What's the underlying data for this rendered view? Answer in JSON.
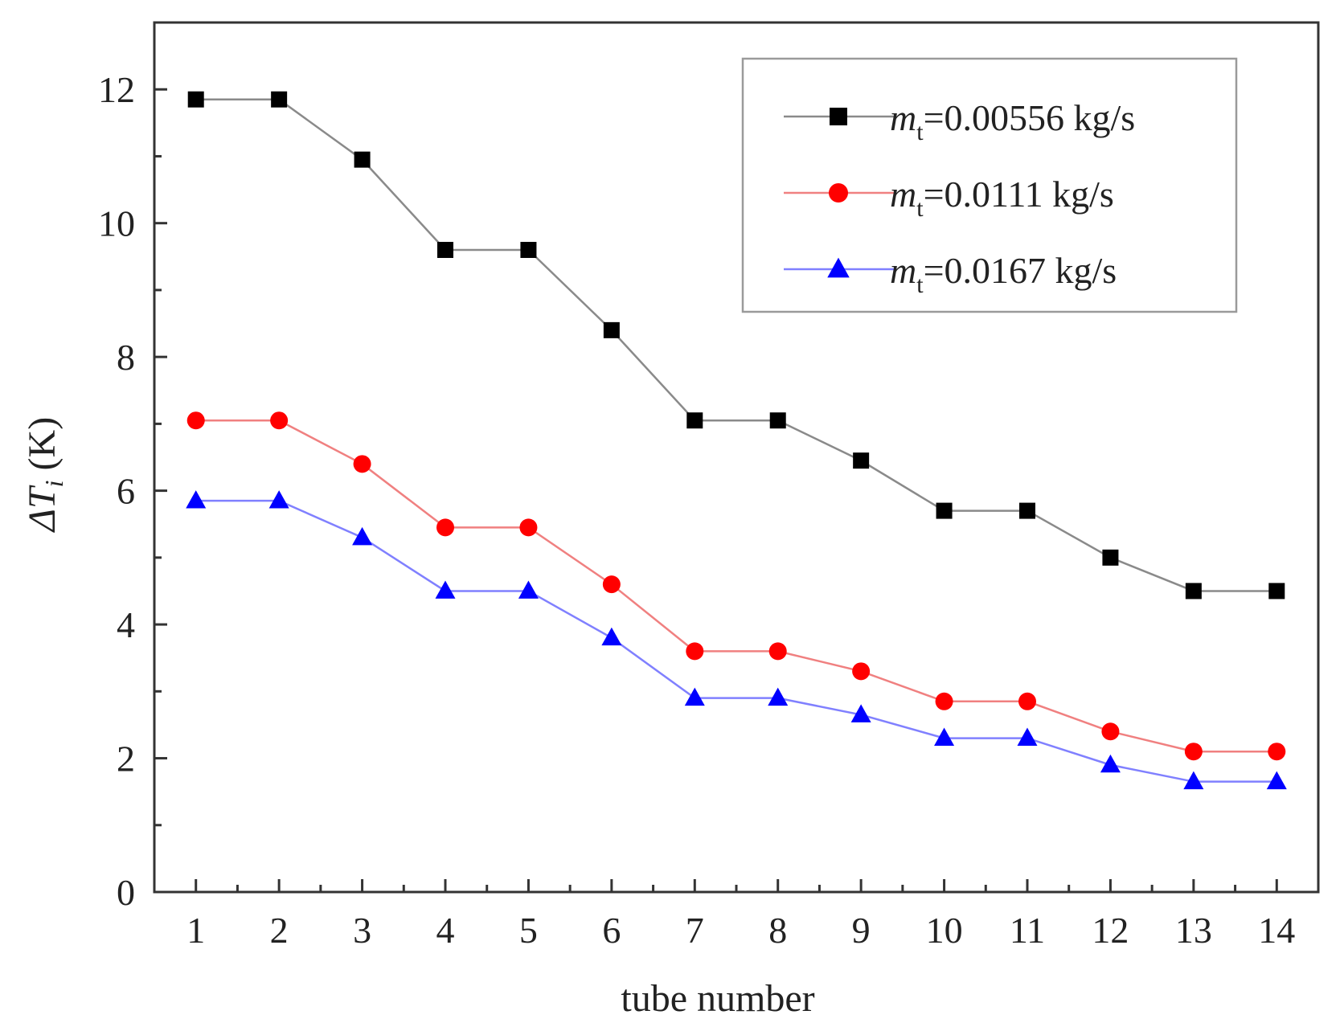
{
  "chart_data": {
    "type": "line",
    "title": "",
    "xlabel": "tube number",
    "ylabel": {
      "symbol": "ΔT",
      "subscript": "i",
      "unit": " (K)"
    },
    "x": [
      1,
      2,
      3,
      4,
      5,
      6,
      7,
      8,
      9,
      10,
      11,
      12,
      13,
      14
    ],
    "xlim": [
      0.5,
      14.5
    ],
    "ylim": [
      0,
      13
    ],
    "yticks": [
      0,
      2,
      4,
      6,
      8,
      10,
      12
    ],
    "xticks": [
      1,
      2,
      3,
      4,
      5,
      6,
      7,
      8,
      9,
      10,
      11,
      12,
      13,
      14
    ],
    "grid": false,
    "legend_position": "top-right",
    "series": [
      {
        "name": "m_t=0.00556 kg/s",
        "label_var": "m",
        "label_sub": "t",
        "label_rest": "=0.00556 kg/s",
        "marker": "square",
        "color": "#000000",
        "line_color": "#8a8a8a",
        "values": [
          11.85,
          11.85,
          10.95,
          9.6,
          9.6,
          8.4,
          7.05,
          7.05,
          6.45,
          5.7,
          5.7,
          5.0,
          4.5,
          4.5
        ]
      },
      {
        "name": "m_t=0.0111 kg/s",
        "label_var": "m",
        "label_sub": "t",
        "label_rest": "=0.0111 kg/s",
        "marker": "circle",
        "color": "#ff0000",
        "line_color": "#f08080",
        "values": [
          7.05,
          7.05,
          6.4,
          5.45,
          5.45,
          4.6,
          3.6,
          3.6,
          3.3,
          2.85,
          2.85,
          2.4,
          2.1,
          2.1
        ]
      },
      {
        "name": "m_t=0.0167 kg/s",
        "label_var": "m",
        "label_sub": "t",
        "label_rest": "=0.0167 kg/s",
        "marker": "triangle",
        "color": "#0000ff",
        "line_color": "#8080ff",
        "values": [
          5.85,
          5.85,
          5.3,
          4.5,
          4.5,
          3.8,
          2.9,
          2.9,
          2.65,
          2.3,
          2.3,
          1.9,
          1.65,
          1.65
        ]
      }
    ]
  }
}
